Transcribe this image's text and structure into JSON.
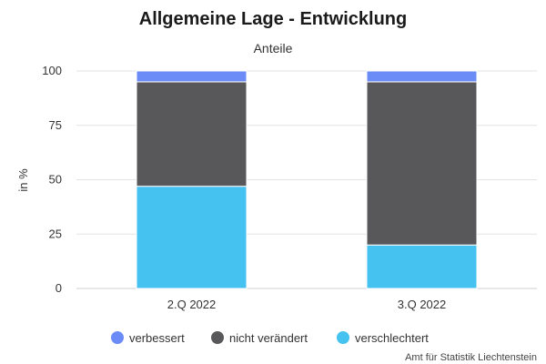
{
  "chart_data": {
    "type": "bar",
    "stacked": true,
    "title": "Allgemeine Lage - Entwicklung",
    "subtitle": "Anteile",
    "ylabel": "in %",
    "xlabel": "",
    "ylim": [
      0,
      100
    ],
    "yticks": [
      0,
      25,
      50,
      75,
      100
    ],
    "grid": true,
    "legend_position": "bottom",
    "categories": [
      "2.Q 2022",
      "3.Q 2022"
    ],
    "series": [
      {
        "name": "verschlechtert",
        "color": "#45c2f0",
        "values": [
          47,
          20
        ]
      },
      {
        "name": "nicht verändert",
        "color": "#58585a",
        "values": [
          48,
          75
        ]
      },
      {
        "name": "verbessert",
        "color": "#6b8cf7",
        "values": [
          5,
          5
        ]
      }
    ],
    "legend_order": [
      "verbessert",
      "nicht verändert",
      "verschlechtert"
    ]
  },
  "credit": "Amt für Statistik Liechtenstein"
}
